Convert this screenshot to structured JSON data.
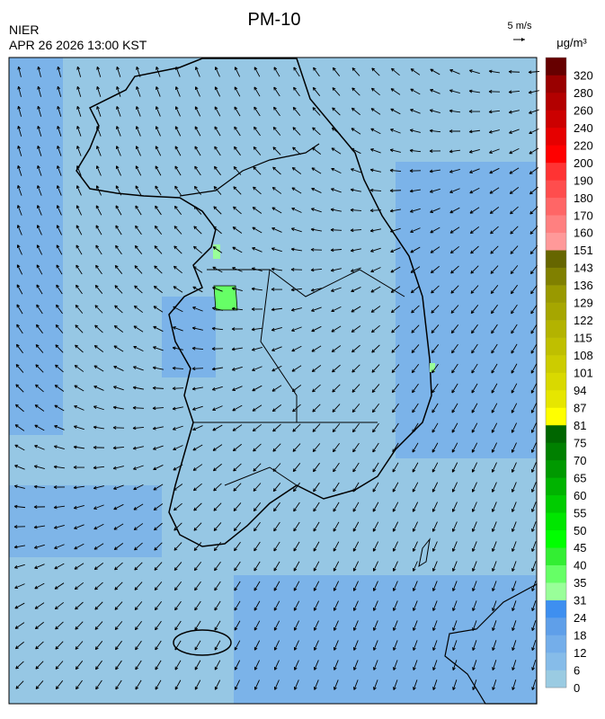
{
  "header": {
    "title": "PM-10",
    "agency": "NIER",
    "datetime": "APR 26 2026 13:00 KST",
    "wind_scale": "5 m/s"
  },
  "colorbar": {
    "unit": "μg/m³",
    "ticks": [
      0,
      6,
      12,
      18,
      24,
      31,
      35,
      40,
      45,
      50,
      55,
      60,
      65,
      70,
      75,
      81,
      87,
      94,
      101,
      108,
      115,
      122,
      129,
      136,
      143,
      151,
      160,
      170,
      180,
      190,
      200,
      220,
      240,
      260,
      280,
      320
    ],
    "colors": [
      "#9acbe2",
      "#86bce9",
      "#74aeea",
      "#5f9fe9",
      "#3e8ff0",
      "#99ff99",
      "#66ff66",
      "#33ee33",
      "#00ff00",
      "#00e600",
      "#00cc00",
      "#00b300",
      "#009900",
      "#008000",
      "#006600",
      "#ffff00",
      "#e6e600",
      "#d9d900",
      "#cccc00",
      "#bfbf00",
      "#b3b300",
      "#a6a600",
      "#999900",
      "#808000",
      "#666600",
      "#ff9999",
      "#ff8080",
      "#ff6666",
      "#ff4d4d",
      "#ff3333",
      "#ff0000",
      "#e60000",
      "#cc0000",
      "#b30000",
      "#990000",
      "#660000"
    ]
  }
}
